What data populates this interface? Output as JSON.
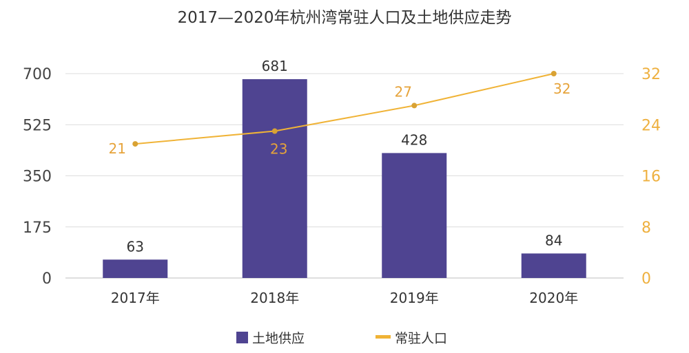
{
  "chart_data": {
    "type": "bar",
    "title": "2017—2020年杭州湾常驻人口及土地供应走势",
    "categories": [
      "2017年",
      "2018年",
      "2019年",
      "2020年"
    ],
    "series": [
      {
        "name": "土地供应",
        "type": "bar",
        "axis": "left",
        "values": [
          63,
          681,
          428,
          84
        ],
        "color": "#4f4491"
      },
      {
        "name": "常驻人口",
        "type": "line",
        "axis": "right",
        "values": [
          21,
          23,
          27,
          32
        ],
        "color": "#f0b336"
      }
    ],
    "y_left": {
      "min": 0,
      "max": 700,
      "ticks": [
        0,
        175,
        350,
        525,
        700
      ]
    },
    "y_right": {
      "min": 0,
      "max": 32,
      "ticks": [
        0,
        8,
        16,
        24,
        32
      ]
    },
    "grid": true,
    "legend_position": "bottom",
    "colors": {
      "bar": "#4f4491",
      "line": "#f0b336",
      "line_label": "#e6a33a",
      "right_axis": "#eeb03f",
      "grid": "#dcdcdc"
    }
  }
}
